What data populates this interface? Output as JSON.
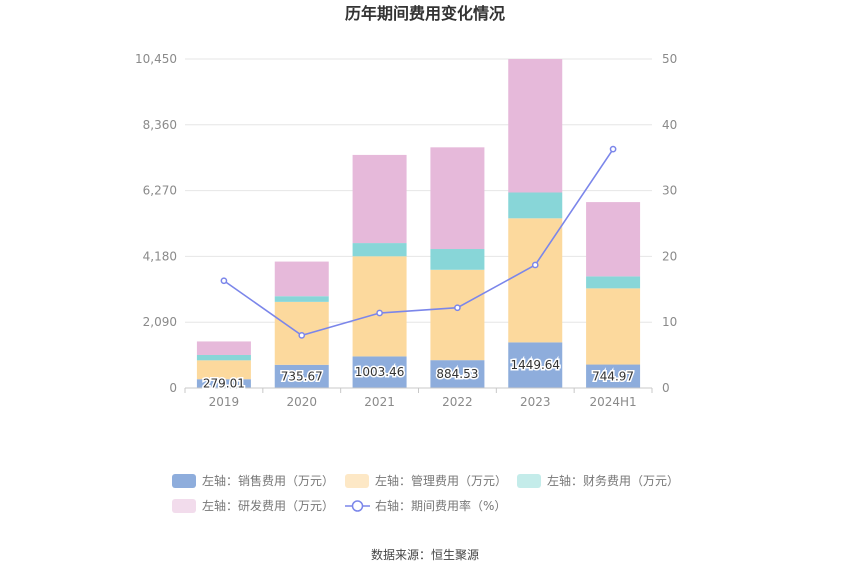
{
  "chart_data": {
    "type": "bar",
    "title": "历年期间费用变化情况",
    "categories": [
      "2019",
      "2020",
      "2021",
      "2022",
      "2023",
      "2024H1"
    ],
    "stacked": true,
    "left_axis": {
      "ticks": [
        "0",
        "2,090",
        "4,180",
        "6,270",
        "8,360",
        "10,450"
      ],
      "ylim": [
        0,
        10450
      ]
    },
    "right_axis": {
      "ticks": [
        "0",
        "10",
        "20",
        "30",
        "40",
        "50"
      ],
      "ylim": [
        0,
        50
      ]
    },
    "series": [
      {
        "name": "左轴：销售费用（万元）",
        "axis": "left",
        "kind": "bar",
        "color": "#8eaddc",
        "values": [
          279.01,
          735.67,
          1003.46,
          884.53,
          1449.64,
          744.97
        ],
        "labels": [
          "279.01",
          "735.67",
          "1003.46",
          "884.53",
          "1449.64",
          "744.97"
        ]
      },
      {
        "name": "左轴：管理费用（万元）",
        "axis": "left",
        "kind": "bar",
        "color": "#fcd99d",
        "values": [
          600,
          2000,
          3180,
          2870,
          3940,
          2420
        ]
      },
      {
        "name": "左轴：财务费用（万元）",
        "axis": "left",
        "kind": "bar",
        "color": "#88d6d8",
        "values": [
          170,
          180,
          420,
          660,
          820,
          380
        ]
      },
      {
        "name": "左轴：研发费用（万元）",
        "axis": "left",
        "kind": "bar",
        "color": "#e6b9da",
        "values": [
          430,
          1100,
          2800,
          3230,
          4240,
          2360
        ]
      },
      {
        "name": "右轴：期间费用率（%）",
        "axis": "right",
        "kind": "line",
        "color": "#7b86ea",
        "values": [
          16.3,
          8.0,
          11.4,
          12.2,
          18.7,
          36.3
        ]
      }
    ],
    "legend_colors": [
      "#8eaddc",
      "#fde8c6",
      "#c4ecea",
      "#f2dcec",
      "#7b86ea"
    ],
    "grid": true,
    "legend_position": "bottom"
  },
  "footer": {
    "source": "数据来源：恒生聚源"
  }
}
